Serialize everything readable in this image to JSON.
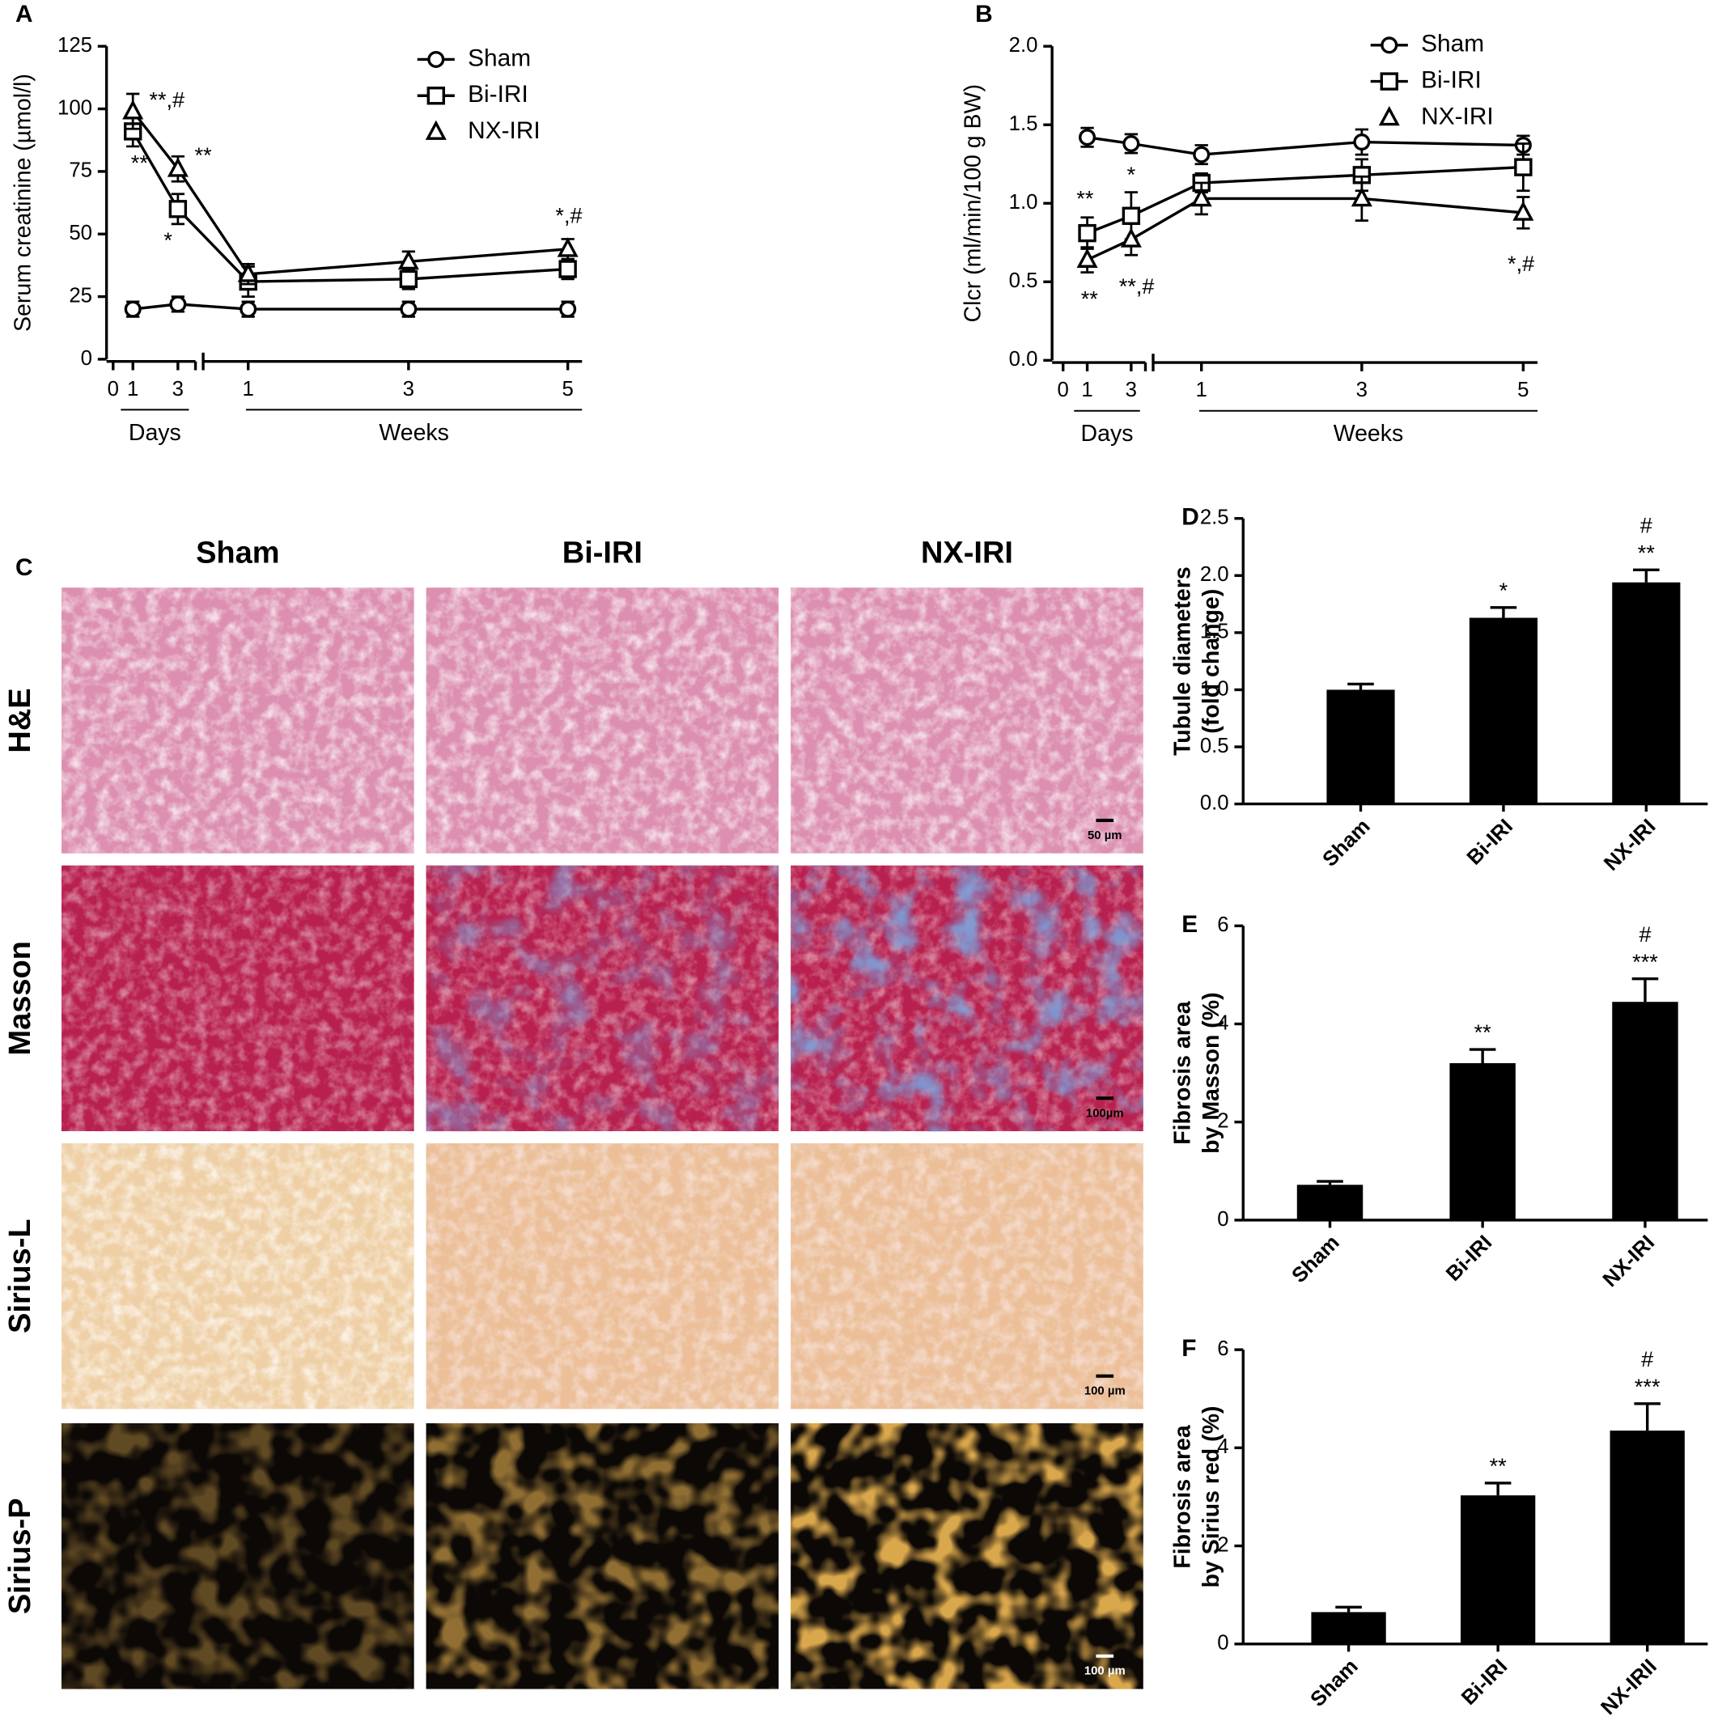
{
  "chart_data": [
    {
      "label": "A",
      "type": "line",
      "ylabel": "Serum creatinine (µmol/l)",
      "origin_label": "0",
      "categories": [
        "1",
        "3",
        "1",
        "3",
        "5"
      ],
      "group_labels": [
        "Days",
        "Weeks"
      ],
      "ylim": [
        0,
        125
      ],
      "yticks": [
        0,
        25,
        50,
        75,
        100,
        125
      ],
      "series": [
        {
          "name": "Sham",
          "marker": "circle",
          "color": "#000000",
          "values": [
            20,
            22,
            20,
            20,
            20
          ],
          "errors": [
            3,
            3,
            3,
            3,
            3
          ],
          "annotations": [
            null,
            null,
            null,
            null,
            null
          ]
        },
        {
          "name": "Bi-IRI",
          "marker": "square",
          "color": "#000000",
          "values": [
            91,
            60,
            31,
            32,
            36
          ],
          "errors": [
            6,
            6,
            6,
            4,
            4
          ],
          "annotations": [
            "**",
            "*",
            null,
            null,
            null
          ]
        },
        {
          "name": "NX-IRI",
          "marker": "triangle",
          "color": "#000000",
          "values": [
            99,
            76,
            34,
            39,
            44
          ],
          "errors": [
            7,
            5,
            4,
            4,
            4
          ],
          "annotations": [
            "**,#",
            "**",
            null,
            null,
            "*,#"
          ]
        }
      ]
    },
    {
      "label": "B",
      "type": "line",
      "ylabel": "Clcr (ml/min/100 g BW)",
      "origin_label": "0",
      "categories": [
        "1",
        "3",
        "1",
        "3",
        "5"
      ],
      "group_labels": [
        "Days",
        "Weeks"
      ],
      "ylim": [
        0,
        2
      ],
      "yticks": [
        {
          "value": 0,
          "label": "0.0"
        },
        0.5,
        {
          "value": 1,
          "label": "1.0"
        },
        1.5,
        {
          "value": 2,
          "label": "2.0"
        }
      ],
      "series": [
        {
          "name": "Sham",
          "marker": "circle",
          "color": "#000000",
          "values": [
            1.42,
            1.38,
            1.31,
            1.39,
            1.37
          ],
          "errors": [
            0.06,
            0.06,
            0.06,
            0.08,
            0.06
          ],
          "annotations": [
            null,
            null,
            null,
            null,
            null
          ]
        },
        {
          "name": "Bi-IRI",
          "marker": "square",
          "color": "#000000",
          "values": [
            0.81,
            0.92,
            1.13,
            1.18,
            1.23
          ],
          "errors": [
            0.1,
            0.15,
            0.06,
            0.1,
            0.15
          ],
          "annotations": [
            "**",
            "*",
            null,
            null,
            null
          ]
        },
        {
          "name": "NX-IRI",
          "marker": "triangle",
          "color": "#000000",
          "values": [
            0.64,
            0.77,
            1.03,
            1.03,
            0.94
          ],
          "errors": [
            0.08,
            0.1,
            0.1,
            0.14,
            0.1
          ],
          "annotations": [
            "**",
            "**,#",
            null,
            null,
            "*,#"
          ]
        }
      ]
    },
    {
      "label": "D",
      "type": "bar",
      "ylabel": [
        "Tubule diameters",
        "(fold change)"
      ],
      "categories": [
        "Sham",
        "Bi-IRI",
        "NX-IRI"
      ],
      "values": [
        1.0,
        1.63,
        1.94
      ],
      "errors": [
        0.05,
        0.09,
        0.11
      ],
      "color": "#000000",
      "ylim": [
        0,
        2.5
      ],
      "yticks": [
        {
          "value": 0,
          "label": "0.0"
        },
        0.5,
        {
          "value": 1,
          "label": "1.0"
        },
        1.5,
        {
          "value": 2,
          "label": "2.0"
        },
        2.5
      ],
      "annotations": [
        [],
        [
          "*"
        ],
        [
          "**",
          "#"
        ]
      ]
    },
    {
      "label": "E",
      "type": "bar",
      "ylabel": [
        "Fibrosis area",
        "by Masson (%)"
      ],
      "categories": [
        "Sham",
        "Bi-IRI",
        "NX-IRI"
      ],
      "values": [
        0.72,
        3.2,
        4.45
      ],
      "errors": [
        0.07,
        0.28,
        0.47
      ],
      "color": "#000000",
      "ylim": [
        0,
        6
      ],
      "yticks": [
        0,
        2,
        4,
        6
      ],
      "annotations": [
        [],
        [
          "**"
        ],
        [
          "***",
          "#"
        ]
      ]
    },
    {
      "label": "F",
      "type": "bar",
      "ylabel": [
        "Fibrosis area",
        "by Sirius red (%)"
      ],
      "categories": [
        "Sham",
        "Bi-IRI",
        "NX-IRII"
      ],
      "values": [
        0.65,
        3.03,
        4.35
      ],
      "errors": [
        0.1,
        0.25,
        0.55
      ],
      "color": "#000000",
      "ylim": [
        0,
        6
      ],
      "yticks": [
        0,
        2,
        4,
        6
      ],
      "annotations": [
        [],
        [
          "**"
        ],
        [
          "***",
          "#"
        ]
      ]
    }
  ],
  "histology": {
    "label": "C",
    "columns": [
      "Sham",
      "Bi-IRI",
      "NX-IRI"
    ],
    "rows": [
      "H&E",
      "Masson",
      "Sirius-L",
      "Sirius-P"
    ],
    "scale_bars": [
      "50 µm",
      "100µm",
      "100 µm",
      "100 µm"
    ]
  }
}
